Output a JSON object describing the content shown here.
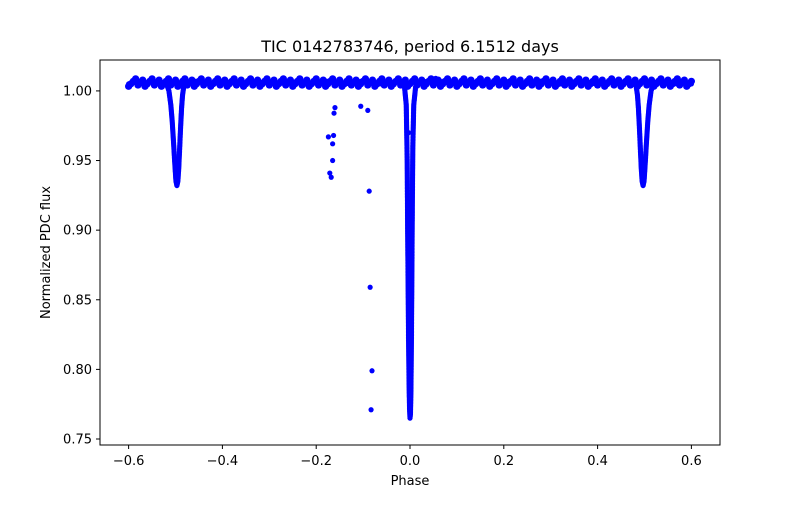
{
  "chart_data": {
    "type": "scatter",
    "title": "TIC 0142783746, period 6.1512 days",
    "xlabel": "Phase",
    "ylabel": "Normalized PDC flux",
    "xlim": [
      -0.661,
      0.661
    ],
    "ylim": [
      0.7457,
      1.0222
    ],
    "xticks": [
      -0.6,
      -0.4,
      -0.2,
      0.0,
      0.2,
      0.4,
      0.6
    ],
    "xtick_labels": [
      "−0.6",
      "−0.4",
      "−0.2",
      "0.0",
      "0.2",
      "0.4",
      "0.6"
    ],
    "yticks": [
      0.75,
      0.8,
      0.85,
      0.9,
      0.95,
      1.0
    ],
    "ytick_labels": [
      "0.75",
      "0.80",
      "0.85",
      "0.90",
      "0.95",
      "1.00"
    ],
    "grid": false,
    "legend": "none",
    "marker_color": "#0000ff",
    "baseline_flux": 1.006,
    "baseline_phase_range": [
      -0.6,
      0.6
    ],
    "series": [
      {
        "points": [
          [
            -0.6,
            1.005
          ],
          [
            -0.59,
            1.006
          ],
          [
            -0.58,
            1.007
          ],
          [
            -0.57,
            1.005
          ],
          [
            -0.56,
            1.006
          ],
          [
            -0.55,
            1.007
          ],
          [
            -0.54,
            1.005
          ],
          [
            -0.53,
            1.006
          ],
          [
            -0.52,
            1.006
          ],
          [
            -0.514,
            1.0
          ],
          [
            -0.51,
            0.99
          ],
          [
            -0.507,
            0.978
          ],
          [
            -0.504,
            0.962
          ],
          [
            -0.501,
            0.945
          ],
          [
            -0.499,
            0.935
          ],
          [
            -0.497,
            0.932
          ],
          [
            -0.495,
            0.935
          ],
          [
            -0.493,
            0.945
          ],
          [
            -0.491,
            0.96
          ],
          [
            -0.489,
            0.975
          ],
          [
            -0.487,
            0.988
          ],
          [
            -0.485,
            0.997
          ],
          [
            -0.482,
            1.004
          ],
          [
            -0.475,
            1.006
          ],
          [
            -0.46,
            1.007
          ],
          [
            -0.44,
            1.006
          ],
          [
            -0.42,
            1.005
          ],
          [
            -0.4,
            1.007
          ],
          [
            -0.38,
            1.006
          ],
          [
            -0.36,
            1.005
          ],
          [
            -0.34,
            1.007
          ],
          [
            -0.32,
            1.006
          ],
          [
            -0.3,
            1.006
          ],
          [
            -0.28,
            1.005
          ],
          [
            -0.26,
            1.007
          ],
          [
            -0.24,
            1.006
          ],
          [
            -0.22,
            1.005
          ],
          [
            -0.2,
            1.006
          ],
          [
            -0.18,
            1.007
          ],
          [
            -0.16,
            1.006
          ],
          [
            -0.14,
            1.005
          ],
          [
            -0.12,
            1.006
          ],
          [
            -0.1,
            1.007
          ],
          [
            -0.08,
            1.006
          ],
          [
            -0.06,
            1.005
          ],
          [
            -0.04,
            1.006
          ],
          [
            -0.02,
            1.007
          ],
          [
            -0.012,
            1.004
          ],
          [
            -0.008,
            0.99
          ],
          [
            -0.006,
            0.95
          ],
          [
            -0.005,
            0.9
          ],
          [
            -0.004,
            0.86
          ],
          [
            -0.003,
            0.82
          ],
          [
            -0.002,
            0.79
          ],
          [
            -0.001,
            0.772
          ],
          [
            0.0,
            0.765
          ],
          [
            0.001,
            0.768
          ],
          [
            0.002,
            0.785
          ],
          [
            0.003,
            0.82
          ],
          [
            0.004,
            0.87
          ],
          [
            0.005,
            0.92
          ],
          [
            0.006,
            0.96
          ],
          [
            0.008,
            0.99
          ],
          [
            0.012,
            1.003
          ],
          [
            0.02,
            1.006
          ],
          [
            0.04,
            1.007
          ],
          [
            0.055,
            1.009
          ],
          [
            0.06,
            1.007
          ],
          [
            0.08,
            1.006
          ],
          [
            0.1,
            1.005
          ],
          [
            0.12,
            1.007
          ],
          [
            0.14,
            1.006
          ],
          [
            0.16,
            1.005
          ],
          [
            0.18,
            1.006
          ],
          [
            0.2,
            1.007
          ],
          [
            0.22,
            1.006
          ],
          [
            0.24,
            1.005
          ],
          [
            0.26,
            1.006
          ],
          [
            0.28,
            1.007
          ],
          [
            0.3,
            1.006
          ],
          [
            0.32,
            1.005
          ],
          [
            0.34,
            1.006
          ],
          [
            0.36,
            1.007
          ],
          [
            0.38,
            1.006
          ],
          [
            0.4,
            1.005
          ],
          [
            0.42,
            1.006
          ],
          [
            0.44,
            1.007
          ],
          [
            0.46,
            1.006
          ],
          [
            0.475,
            1.006
          ],
          [
            0.482,
            1.004
          ],
          [
            0.485,
            0.997
          ],
          [
            0.487,
            0.988
          ],
          [
            0.489,
            0.975
          ],
          [
            0.491,
            0.96
          ],
          [
            0.493,
            0.945
          ],
          [
            0.495,
            0.935
          ],
          [
            0.497,
            0.932
          ],
          [
            0.499,
            0.935
          ],
          [
            0.501,
            0.945
          ],
          [
            0.504,
            0.962
          ],
          [
            0.507,
            0.978
          ],
          [
            0.51,
            0.99
          ],
          [
            0.514,
            1.0
          ],
          [
            0.52,
            1.006
          ],
          [
            0.53,
            1.006
          ],
          [
            0.54,
            1.005
          ],
          [
            0.55,
            1.007
          ],
          [
            0.56,
            1.006
          ],
          [
            0.57,
            1.005
          ],
          [
            0.58,
            1.007
          ],
          [
            0.59,
            1.006
          ],
          [
            0.6,
            1.005
          ],
          [
            -0.174,
            0.967
          ],
          [
            -0.171,
            0.941
          ],
          [
            -0.168,
            0.938
          ],
          [
            -0.165,
            0.962
          ],
          [
            -0.163,
            0.968
          ],
          [
            -0.165,
            0.95
          ],
          [
            -0.162,
            0.984
          ],
          [
            -0.16,
            0.988
          ],
          [
            -0.105,
            0.989
          ],
          [
            -0.09,
            0.986
          ],
          [
            -0.087,
            0.928
          ],
          [
            -0.085,
            0.859
          ],
          [
            -0.081,
            0.799
          ],
          [
            -0.083,
            0.771
          ],
          [
            -0.003,
            0.97
          ]
        ]
      }
    ]
  }
}
